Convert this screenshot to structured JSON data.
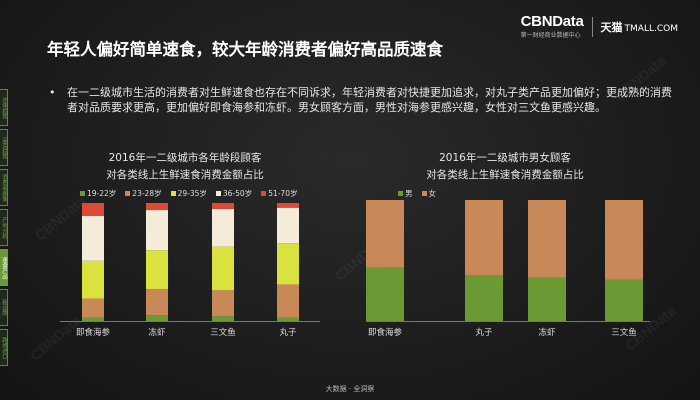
{
  "logo": {
    "brand": "CBNData",
    "brand_sub": "第一财经商业数据中心",
    "partner": "天猫",
    "partner_en": "TMALL.COM"
  },
  "title": "年轻人偏好简单速食，较大年龄消费者偏好高品质速食",
  "bullet": "在一二级城市生活的消费者对生鲜速食也存在不同诉求，年轻消费者对快捷更加追求，对丸子类产品更加偏好；更成熟的消费者对品质要求更高，更加偏好即食海参和冻虾。男女顾客方面，男性对海参更感兴趣，女性对三文鱼更感兴趣。",
  "sidenav": [
    {
      "label": "总体趋势"
    },
    {
      "label": "品类趋势"
    },
    {
      "label": "消费者画像"
    },
    {
      "label": "产地分析"
    },
    {
      "label": "速食产品"
    },
    {
      "label": "新品牌"
    },
    {
      "label": "跨境进口"
    }
  ],
  "colors": {
    "c1": "#6b9a35",
    "c2": "#c98858",
    "c3": "#d9e23f",
    "c4": "#f4ecd8",
    "c5": "#dd4a37",
    "male": "#6b9a35",
    "female": "#c98858"
  },
  "chart_data": [
    {
      "type": "bar",
      "stacked": true,
      "percent": true,
      "title": "2016年一二级城市各年龄段顾客\n对各类线上生鲜速食消费金额占比",
      "categories": [
        "即食海参",
        "冻虾",
        "三文鱼",
        "丸子"
      ],
      "series": [
        {
          "name": "19-22岁",
          "values": [
            3,
            5,
            4,
            3
          ]
        },
        {
          "name": "23-28岁",
          "values": [
            16,
            22,
            22,
            28
          ]
        },
        {
          "name": "29-35岁",
          "values": [
            32,
            33,
            37,
            35
          ]
        },
        {
          "name": "36-50岁",
          "values": [
            38,
            34,
            32,
            30
          ]
        },
        {
          "name": "51-70岁",
          "values": [
            11,
            6,
            5,
            4
          ]
        }
      ],
      "ylim": [
        0,
        100
      ]
    },
    {
      "type": "bar",
      "stacked": true,
      "percent": true,
      "title": "2016年一二级城市男女顾客\n对各类线上生鲜速食消费金额占比",
      "categories": [
        "即食海参",
        "丸子",
        "冻虾",
        "三文鱼"
      ],
      "series": [
        {
          "name": "男",
          "values": [
            44,
            38,
            36,
            34
          ]
        },
        {
          "name": "女",
          "values": [
            56,
            62,
            64,
            66
          ]
        }
      ],
      "ylim": [
        0,
        100
      ]
    }
  ],
  "footer": "大数据 · 全洞察"
}
